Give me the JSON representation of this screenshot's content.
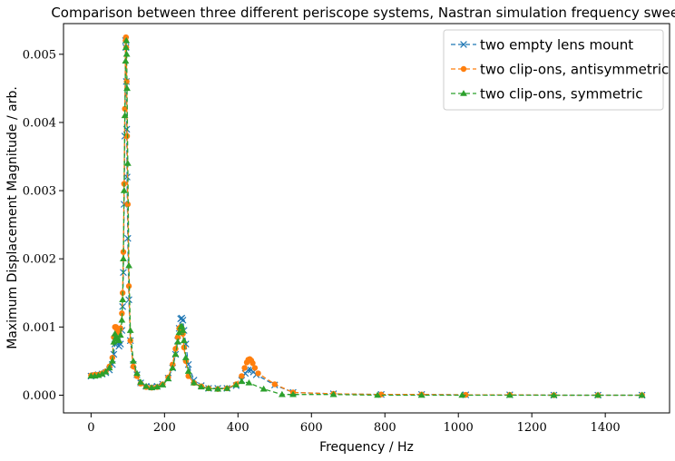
{
  "chart_data": {
    "type": "line",
    "title": "Comparison between three different periscope systems, Nastran simulation frequency sweep",
    "xlabel": "Frequency / Hz",
    "ylabel": "Maximum Displacement Magnitude / arb.",
    "xlim": [
      -75,
      1575
    ],
    "ylim": [
      -0.00026,
      0.00545
    ],
    "xticks": [
      0,
      200,
      400,
      600,
      800,
      1000,
      1200,
      1400
    ],
    "xtick_labels": [
      "0",
      "200",
      "400",
      "600",
      "800",
      "1000",
      "1200",
      "1400"
    ],
    "yticks": [
      0.0,
      0.001,
      0.002,
      0.003,
      0.004,
      0.005
    ],
    "ytick_labels": [
      "0.000",
      "0.001",
      "0.002",
      "0.003",
      "0.004",
      "0.005"
    ],
    "grid": false,
    "legend_position": "upper right",
    "series": [
      {
        "name": "two empty lens mount",
        "color": "#1f77b4",
        "marker": "x",
        "linestyle": "dashed",
        "points": [
          [
            0,
            0.00028
          ],
          [
            10,
            0.00029
          ],
          [
            20,
            0.0003
          ],
          [
            30,
            0.00031
          ],
          [
            40,
            0.00033
          ],
          [
            50,
            0.00037
          ],
          [
            58,
            0.00045
          ],
          [
            62,
            0.0006
          ],
          [
            65,
            0.00075
          ],
          [
            68,
            0.0008
          ],
          [
            72,
            0.00078
          ],
          [
            76,
            0.00072
          ],
          [
            80,
            0.00075
          ],
          [
            84,
            0.00095
          ],
          [
            86,
            0.0013
          ],
          [
            88,
            0.0018
          ],
          [
            90,
            0.0028
          ],
          [
            92,
            0.0038
          ],
          [
            94,
            0.0052
          ],
          [
            95,
            0.0051
          ],
          [
            96,
            0.0046
          ],
          [
            97,
            0.0039
          ],
          [
            98,
            0.0032
          ],
          [
            100,
            0.0023
          ],
          [
            103,
            0.0014
          ],
          [
            107,
            0.0008
          ],
          [
            115,
            0.00045
          ],
          [
            125,
            0.0003
          ],
          [
            135,
            0.00018
          ],
          [
            150,
            0.00013
          ],
          [
            165,
            0.00012
          ],
          [
            180,
            0.00013
          ],
          [
            195,
            0.00016
          ],
          [
            210,
            0.00025
          ],
          [
            222,
            0.0004
          ],
          [
            230,
            0.0006
          ],
          [
            236,
            0.0008
          ],
          [
            240,
            0.00098
          ],
          [
            244,
            0.00112
          ],
          [
            247,
            0.00113
          ],
          [
            250,
            0.0011
          ],
          [
            253,
            0.00095
          ],
          [
            258,
            0.00075
          ],
          [
            265,
            0.00045
          ],
          [
            280,
            0.00022
          ],
          [
            300,
            0.00014
          ],
          [
            320,
            0.0001
          ],
          [
            345,
            0.0001
          ],
          [
            370,
            0.0001
          ],
          [
            395,
            0.00014
          ],
          [
            410,
            0.00022
          ],
          [
            420,
            0.00032
          ],
          [
            428,
            0.00037
          ],
          [
            435,
            0.00037
          ],
          [
            442,
            0.00034
          ],
          [
            450,
            0.0003
          ],
          [
            500,
            0.00015
          ],
          [
            550,
            4e-05
          ],
          [
            660,
            2e-05
          ],
          [
            790,
            1e-05
          ],
          [
            900,
            1e-05
          ],
          [
            1020,
            5e-06
          ],
          [
            1140,
            5e-06
          ],
          [
            1260,
            0.0
          ],
          [
            1380,
            0.0
          ],
          [
            1500,
            0.0
          ]
        ]
      },
      {
        "name": "two clip-ons, antisymmetric",
        "color": "#ff7f0e",
        "marker": "o",
        "linestyle": "dashed",
        "points": [
          [
            0,
            0.00029
          ],
          [
            10,
            0.0003
          ],
          [
            20,
            0.0003
          ],
          [
            30,
            0.00032
          ],
          [
            40,
            0.00035
          ],
          [
            50,
            0.00042
          ],
          [
            58,
            0.00055
          ],
          [
            62,
            0.00085
          ],
          [
            65,
            0.001
          ],
          [
            68,
            0.001
          ],
          [
            72,
            0.00095
          ],
          [
            76,
            0.00092
          ],
          [
            80,
            0.00098
          ],
          [
            84,
            0.0012
          ],
          [
            86,
            0.0015
          ],
          [
            88,
            0.0021
          ],
          [
            90,
            0.0031
          ],
          [
            92,
            0.0042
          ],
          [
            94,
            0.0052
          ],
          [
            95,
            0.00525
          ],
          [
            96,
            0.0051
          ],
          [
            97,
            0.0046
          ],
          [
            98,
            0.0038
          ],
          [
            100,
            0.0028
          ],
          [
            103,
            0.0016
          ],
          [
            107,
            0.0008
          ],
          [
            115,
            0.00042
          ],
          [
            125,
            0.00028
          ],
          [
            135,
            0.00017
          ],
          [
            150,
            0.00012
          ],
          [
            165,
            0.00011
          ],
          [
            180,
            0.00012
          ],
          [
            195,
            0.00016
          ],
          [
            210,
            0.00026
          ],
          [
            222,
            0.00045
          ],
          [
            230,
            0.00068
          ],
          [
            236,
            0.00085
          ],
          [
            240,
            0.00098
          ],
          [
            244,
            0.001
          ],
          [
            247,
            0.00098
          ],
          [
            250,
            0.0009
          ],
          [
            253,
            0.0007
          ],
          [
            258,
            0.0005
          ],
          [
            265,
            0.00028
          ],
          [
            280,
            0.00018
          ],
          [
            300,
            0.00013
          ],
          [
            320,
            0.0001
          ],
          [
            345,
            9e-05
          ],
          [
            370,
            0.0001
          ],
          [
            395,
            0.00016
          ],
          [
            410,
            0.00028
          ],
          [
            418,
            0.0004
          ],
          [
            424,
            0.00048
          ],
          [
            428,
            0.00052
          ],
          [
            432,
            0.00053
          ],
          [
            436,
            0.00051
          ],
          [
            440,
            0.00047
          ],
          [
            446,
            0.0004
          ],
          [
            455,
            0.00032
          ],
          [
            500,
            0.00016
          ],
          [
            550,
            4e-05
          ],
          [
            660,
            2e-05
          ],
          [
            790,
            1e-05
          ],
          [
            900,
            1e-05
          ],
          [
            1020,
            5e-06
          ],
          [
            1140,
            5e-06
          ],
          [
            1260,
            0.0
          ],
          [
            1380,
            0.0
          ],
          [
            1500,
            0.0
          ]
        ]
      },
      {
        "name": "two clip-ons, symmetric",
        "color": "#2ca02c",
        "marker": "^",
        "linestyle": "dashed",
        "points": [
          [
            0,
            0.00028
          ],
          [
            10,
            0.00028
          ],
          [
            20,
            0.00029
          ],
          [
            30,
            0.00031
          ],
          [
            40,
            0.00034
          ],
          [
            50,
            0.0004
          ],
          [
            58,
            0.0005
          ],
          [
            62,
            0.00078
          ],
          [
            65,
            0.0009
          ],
          [
            68,
            0.00085
          ],
          [
            72,
            0.00082
          ],
          [
            76,
            0.0008
          ],
          [
            80,
            0.00088
          ],
          [
            84,
            0.0011
          ],
          [
            86,
            0.0014
          ],
          [
            88,
            0.002
          ],
          [
            90,
            0.003
          ],
          [
            92,
            0.0041
          ],
          [
            94,
            0.0049
          ],
          [
            95,
            0.0051
          ],
          [
            96,
            0.0052
          ],
          [
            97,
            0.005
          ],
          [
            98,
            0.0045
          ],
          [
            100,
            0.0034
          ],
          [
            103,
            0.0019
          ],
          [
            107,
            0.00095
          ],
          [
            115,
            0.0005
          ],
          [
            125,
            0.00032
          ],
          [
            135,
            0.00019
          ],
          [
            150,
            0.00013
          ],
          [
            165,
            0.00011
          ],
          [
            180,
            0.00012
          ],
          [
            195,
            0.00015
          ],
          [
            210,
            0.00024
          ],
          [
            222,
            0.0004
          ],
          [
            230,
            0.0006
          ],
          [
            236,
            0.00078
          ],
          [
            240,
            0.00092
          ],
          [
            244,
            0.001
          ],
          [
            247,
            0.00101
          ],
          [
            250,
            0.00095
          ],
          [
            253,
            0.0008
          ],
          [
            258,
            0.00055
          ],
          [
            265,
            0.00035
          ],
          [
            280,
            0.00018
          ],
          [
            300,
            0.00012
          ],
          [
            320,
            0.0001
          ],
          [
            345,
            9e-05
          ],
          [
            370,
            0.0001
          ],
          [
            395,
            0.00015
          ],
          [
            410,
            0.0002
          ],
          [
            430,
            0.00018
          ],
          [
            470,
            9e-05
          ],
          [
            520,
            1e-05
          ],
          [
            550,
            1e-05
          ],
          [
            660,
            1e-05
          ],
          [
            780,
            0.0
          ],
          [
            900,
            0.0
          ],
          [
            1010,
            0.0
          ],
          [
            1140,
            0.0
          ],
          [
            1260,
            0.0
          ],
          [
            1380,
            0.0
          ],
          [
            1500,
            0.0
          ]
        ]
      }
    ]
  }
}
